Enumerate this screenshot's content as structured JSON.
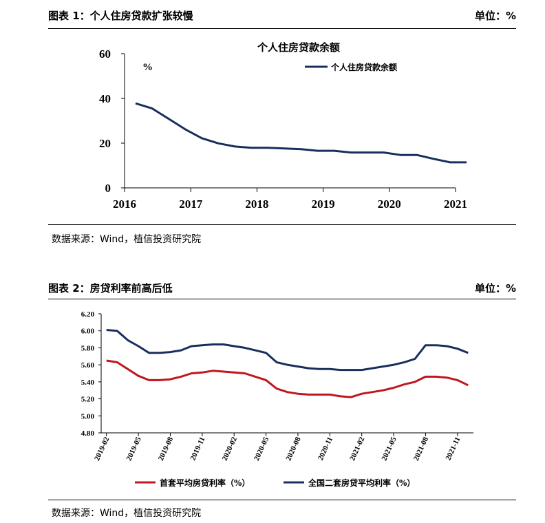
{
  "figure1": {
    "header_title": "图表 1：个人住房贷款扩张较慢",
    "header_unit": "单位：%",
    "source": "数据来源：Wind，植信投资研究院"
  },
  "figure2": {
    "header_title": "图表 2：房贷利率前高后低",
    "header_unit": "单位：%",
    "source": "数据来源：Wind，植信投资研究院"
  },
  "chart_data": [
    {
      "type": "line",
      "title": "个人住房贷款余额",
      "ylabel": "%",
      "xlabel": "",
      "ylim": [
        0,
        60
      ],
      "yticks": [
        0,
        20,
        40,
        60
      ],
      "xticks": [
        "2016",
        "2017",
        "2018",
        "2019",
        "2020",
        "2021"
      ],
      "legend": "top-right",
      "grid": false,
      "color": "#1a2e5e",
      "series": [
        {
          "name": "个人住房贷款余额",
          "x": [
            "2016-03",
            "2016-06",
            "2016-09",
            "2016-12",
            "2017-03",
            "2017-06",
            "2017-09",
            "2017-12",
            "2018-03",
            "2018-06",
            "2018-09",
            "2018-12",
            "2019-03",
            "2019-06",
            "2019-09",
            "2019-12",
            "2020-03",
            "2020-06",
            "2020-09",
            "2020-12",
            "2021-03"
          ],
          "values": [
            37.8,
            35.5,
            30.9,
            26.2,
            22.2,
            19.9,
            18.5,
            17.9,
            17.9,
            17.6,
            17.3,
            16.6,
            16.6,
            15.8,
            15.8,
            15.8,
            14.7,
            14.7,
            13.0,
            11.4,
            11.4
          ]
        }
      ]
    },
    {
      "type": "line",
      "title": "",
      "xlabel": "",
      "ylabel": "",
      "ylim": [
        4.8,
        6.2
      ],
      "yticks": [
        "4.80",
        "5.00",
        "5.20",
        "5.40",
        "5.60",
        "5.80",
        "6.00",
        "6.20"
      ],
      "xticks": [
        "2019-02",
        "2019-05",
        "2019-08",
        "2019-11",
        "2020-02",
        "2020-05",
        "2020-08",
        "2020-11",
        "2021-02",
        "2021-05",
        "2021-08",
        "2021-11"
      ],
      "legend": "bottom",
      "grid": false,
      "categories": [
        "2019-02",
        "2019-03",
        "2019-04",
        "2019-05",
        "2019-06",
        "2019-07",
        "2019-08",
        "2019-09",
        "2019-10",
        "2019-11",
        "2019-12",
        "2020-01",
        "2020-02",
        "2020-03",
        "2020-04",
        "2020-05",
        "2020-06",
        "2020-07",
        "2020-08",
        "2020-09",
        "2020-10",
        "2020-11",
        "2020-12",
        "2021-01",
        "2021-02",
        "2021-03",
        "2021-04",
        "2021-05",
        "2021-06",
        "2021-07",
        "2021-08",
        "2021-09",
        "2021-10",
        "2021-11",
        "2021-12"
      ],
      "series": [
        {
          "name": "首套平均房贷利率（%）",
          "color": "#c0161e",
          "values": [
            5.65,
            5.63,
            5.55,
            5.47,
            5.42,
            5.42,
            5.43,
            5.46,
            5.5,
            5.51,
            5.53,
            5.52,
            5.51,
            5.5,
            5.46,
            5.42,
            5.32,
            5.28,
            5.26,
            5.25,
            5.25,
            5.25,
            5.23,
            5.22,
            5.26,
            5.28,
            5.3,
            5.33,
            5.37,
            5.4,
            5.46,
            5.46,
            5.45,
            5.42,
            5.36
          ]
        },
        {
          "name": "全国二套房贷平均利率（%）",
          "color": "#1a2e5e",
          "values": [
            6.01,
            6.0,
            5.89,
            5.82,
            5.74,
            5.74,
            5.75,
            5.77,
            5.82,
            5.83,
            5.84,
            5.84,
            5.82,
            5.8,
            5.77,
            5.74,
            5.63,
            5.6,
            5.58,
            5.56,
            5.55,
            5.55,
            5.54,
            5.54,
            5.54,
            5.56,
            5.58,
            5.6,
            5.63,
            5.67,
            5.83,
            5.83,
            5.82,
            5.79,
            5.74
          ]
        }
      ]
    }
  ]
}
